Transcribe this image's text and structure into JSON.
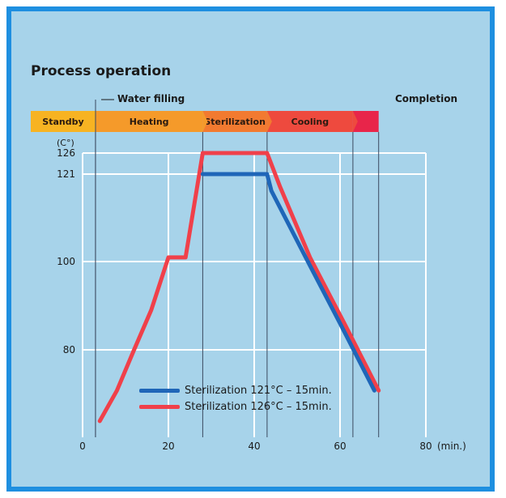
{
  "title": "Process operation",
  "water_filling_label": "Water filling",
  "completion_label": "Completion",
  "phases": [
    {
      "label": "Standby",
      "color": "#f7b322"
    },
    {
      "label": "Heating",
      "color": "#f59a2a"
    },
    {
      "label": "Sterilization",
      "color": "#f27a30"
    },
    {
      "label": "Cooling",
      "color": "#ee4a3e"
    },
    {
      "label": "",
      "color": "#e8254a"
    }
  ],
  "colors": {
    "frame": "#1e8fe0",
    "background": "#a7d3ea",
    "grid": "#ffffff",
    "series_121": "#1f66b8",
    "series_126": "#f0404a"
  },
  "chart_data": {
    "type": "line",
    "title": "Process operation",
    "ylabel": "(C°)",
    "xlabel": "(min.)",
    "x_ticks": [
      "0",
      "20",
      "40",
      "60",
      "80"
    ],
    "y_ticks": [
      "80",
      "100",
      "121",
      "126"
    ],
    "xlim": [
      0,
      80
    ],
    "grid": true,
    "legend_position": "bottom-center",
    "phase_boundaries_min": [
      3,
      28,
      43,
      63,
      69
    ],
    "series": [
      {
        "name": "Sterilization 121°C – 15min.",
        "color": "#1f66b8",
        "points": [
          [
            28,
            121
          ],
          [
            43,
            121
          ],
          [
            44,
            117
          ],
          [
            52,
            101
          ],
          [
            60,
            86
          ],
          [
            68,
            72
          ]
        ]
      },
      {
        "name": "Sterilization 126°C – 15min.",
        "color": "#f0404a",
        "points": [
          [
            4,
            66
          ],
          [
            8,
            72
          ],
          [
            12,
            80
          ],
          [
            16,
            89
          ],
          [
            20,
            101
          ],
          [
            24,
            101
          ],
          [
            28,
            126
          ],
          [
            43,
            126
          ],
          [
            46,
            118
          ],
          [
            53,
            101
          ],
          [
            61,
            86
          ],
          [
            69,
            72
          ]
        ]
      }
    ]
  }
}
